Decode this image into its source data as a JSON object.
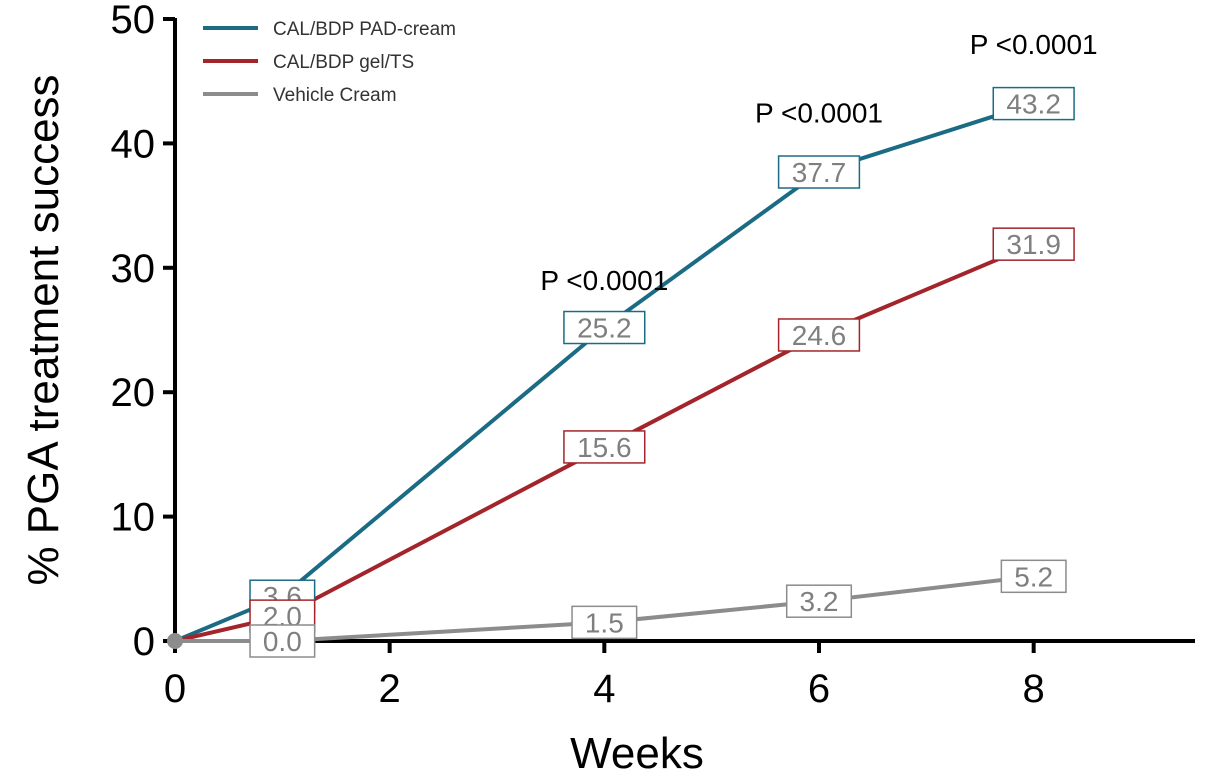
{
  "chart_data": {
    "type": "line",
    "xlabel": "Weeks",
    "ylabel": "% PGA treatment success",
    "xlim": [
      0,
      9
    ],
    "ylim": [
      0,
      50
    ],
    "x_ticks": [
      "0",
      "2",
      "4",
      "6",
      "8"
    ],
    "y_ticks": [
      "0",
      "10",
      "20",
      "30",
      "40",
      "50"
    ],
    "grid": false,
    "legend_position": "top-left",
    "series": [
      {
        "name": "CAL/BDP PAD-cream",
        "color": "#1b6b84",
        "x": [
          0,
          1,
          4,
          6,
          8
        ],
        "y": [
          0,
          3.6,
          25.2,
          37.7,
          43.2
        ],
        "labels": [
          "",
          "3.6",
          "25.2",
          "37.7",
          "43.2"
        ]
      },
      {
        "name": "CAL/BDP gel/TS",
        "color": "#a3252b",
        "x": [
          0,
          1,
          4,
          6,
          8
        ],
        "y": [
          0,
          2.0,
          15.6,
          24.6,
          31.9
        ],
        "labels": [
          "",
          "2.0",
          "15.6",
          "24.6",
          "31.9"
        ]
      },
      {
        "name": "Vehicle Cream",
        "color": "#8c8c8c",
        "x": [
          0,
          1,
          4,
          6,
          8
        ],
        "y": [
          0,
          0.0,
          1.5,
          3.2,
          5.2
        ],
        "labels": [
          "",
          "0.0",
          "1.5",
          "3.2",
          "5.2"
        ]
      }
    ],
    "annotations": [
      {
        "text": "P <0.0001",
        "x": 4,
        "y": 29
      },
      {
        "text": "P <0.0001",
        "x": 6,
        "y": 42.5
      },
      {
        "text": "P <0.0001",
        "x": 8,
        "y": 48
      }
    ]
  }
}
